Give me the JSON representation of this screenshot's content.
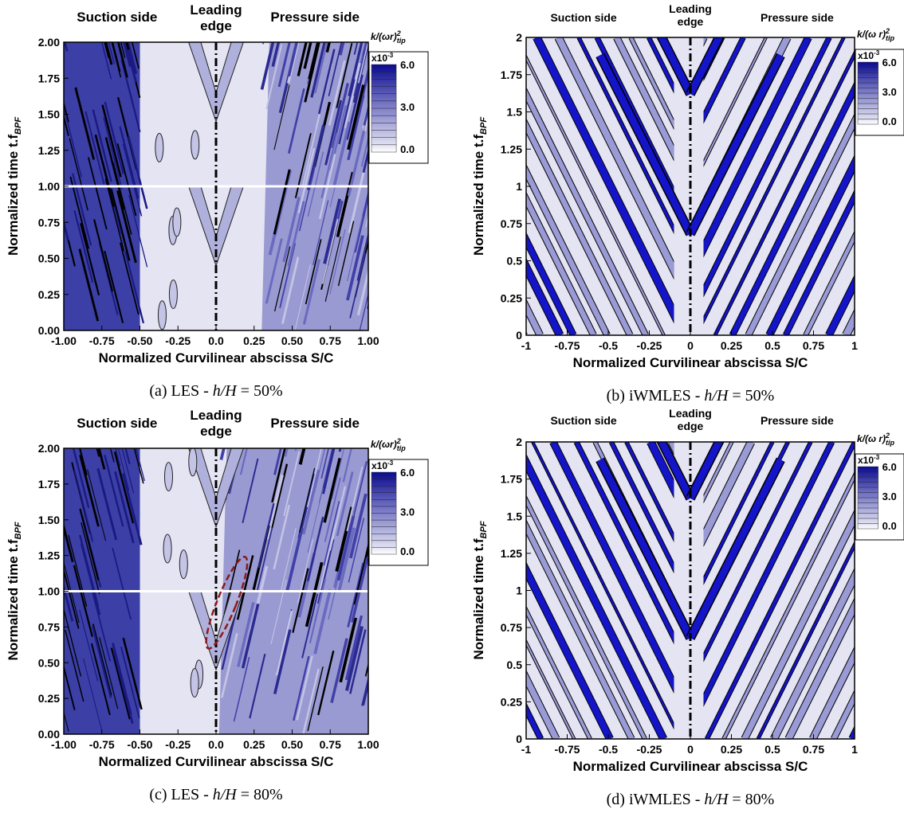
{
  "panels": [
    {
      "regions": {
        "suction": "Suction side",
        "leading": [
          "Leading",
          "edge"
        ],
        "pressure": "Pressure side"
      },
      "colorbar": {
        "title": "k/(ωr)",
        "sup": "2",
        "sub": "tip",
        "multiplier": "x10",
        "exponent": "-3",
        "ticks": [
          "6.0",
          "3.0",
          "0.0"
        ]
      },
      "y_label": "Normalized time t.f",
      "y_label_sub": "BPF",
      "yticks": [
        "2.00",
        "1.75",
        "1.50",
        "1.25",
        "1.00",
        "0.75",
        "0.50",
        "0.25",
        "0.00"
      ],
      "xticks": [
        "-1.00",
        "-0.75",
        "-0.50",
        "-0.25",
        "0.0",
        "0.25",
        "0.50",
        "0.75",
        "1.00"
      ],
      "x_label": "Normalized Curvilinear abscissa S/C",
      "caption": {
        "prefix": "(a) LES - ",
        "var": "h/H",
        "suffix": " = 50%"
      }
    },
    {
      "regions": {
        "suction": "Suction side",
        "leading": [
          "Leading",
          "edge"
        ],
        "pressure": "Pressure side"
      },
      "colorbar": {
        "title": "k/(ω r)",
        "sup": "2",
        "sub": "tip",
        "multiplier": "x10",
        "exponent": "-3",
        "ticks": [
          "6.0",
          "3.0",
          "0.0"
        ]
      },
      "y_label": "Normalized time t.f",
      "y_label_sub": "BPF",
      "yticks": [
        "2",
        "1.75",
        "1.5",
        "1.25",
        "1",
        "0.75",
        "0.5",
        "0.25",
        "0"
      ],
      "xticks": [
        "-1",
        "-0.75",
        "-0.5",
        "-0.25",
        "0",
        "0.25",
        "0.5",
        "0.75",
        "1"
      ],
      "x_label": "Normalized Curvilinear abscissa S/C",
      "caption": {
        "prefix": "(b) iWMLES - ",
        "var": "h/H",
        "suffix": " = 50%"
      }
    },
    {
      "regions": {
        "suction": "Suction side",
        "leading": [
          "Leading",
          "edge"
        ],
        "pressure": "Pressure side"
      },
      "colorbar": {
        "title": "k/(ωr)",
        "sup": "2",
        "sub": "tip",
        "multiplier": "x10",
        "exponent": "-3",
        "ticks": [
          "6.0",
          "3.0",
          "0.0"
        ]
      },
      "y_label": "Normalized time t.f",
      "y_label_sub": "BPF",
      "yticks": [
        "2.00",
        "1.75",
        "1.50",
        "1.25",
        "1.00",
        "0.75",
        "0.50",
        "0.25",
        "0.00"
      ],
      "xticks": [
        "-1.00",
        "-0.75",
        "-0.50",
        "-0.25",
        "0.0",
        "0.25",
        "0.50",
        "0.75",
        "1.00"
      ],
      "x_label": "Normalized Curvilinear abscissa S/C",
      "caption": {
        "prefix": "(c) LES - ",
        "var": "h/H",
        "suffix": " = 80%"
      }
    },
    {
      "regions": {
        "suction": "Suction side",
        "leading": [
          "Leading",
          "edge"
        ],
        "pressure": "Pressure side"
      },
      "colorbar": {
        "title": "k/(ω r)",
        "sup": "2",
        "sub": "tip",
        "multiplier": "x10",
        "exponent": "-3",
        "ticks": [
          "6.0",
          "3.0",
          "0.0"
        ]
      },
      "y_label": "Normalized time t.f",
      "y_label_sub": "BPF",
      "yticks": [
        "2",
        "1.75",
        "1.5",
        "1.25",
        "1",
        "0.75",
        "0.5",
        "0.25",
        "0"
      ],
      "xticks": [
        "-1",
        "-0.75",
        "-0.5",
        "-0.25",
        "0",
        "0.25",
        "0.5",
        "0.75",
        "1"
      ],
      "x_label": "Normalized Curvilinear abscissa S/C",
      "caption": {
        "prefix": "(d) iWMLES - ",
        "var": "h/H",
        "suffix": " = 80%"
      }
    }
  ]
}
